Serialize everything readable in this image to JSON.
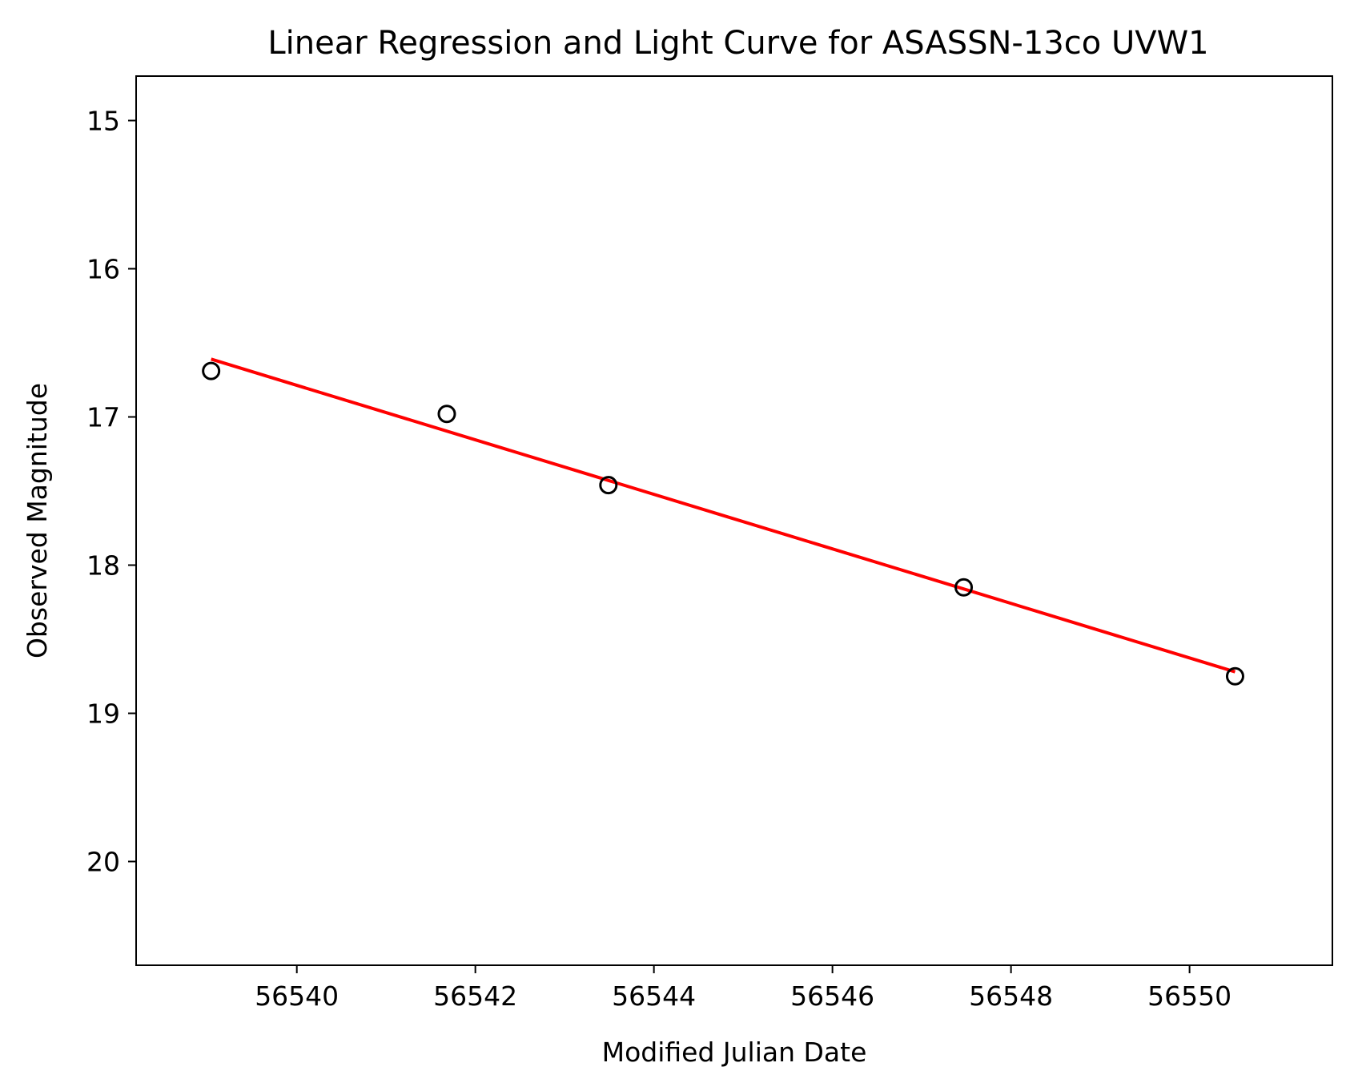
{
  "chart_data": {
    "type": "scatter",
    "title": "Linear Regression and Light Curve for ASASSN-13co UVW1",
    "xlabel": "Modified Julian Date",
    "ylabel": "Observed Magnitude",
    "xlim": [
      56538.2,
      56551.6
    ],
    "ylim": [
      20.7,
      14.7
    ],
    "y_inverted": true,
    "xticks": [
      56540,
      56542,
      56544,
      56546,
      56548,
      56550
    ],
    "yticks": [
      15,
      16,
      17,
      18,
      19,
      20
    ],
    "grid": false,
    "series": [
      {
        "kind": "scatter",
        "marker": "open-circle",
        "color": "#000000",
        "x": [
          56539.04,
          56541.68,
          56543.49,
          56547.47,
          56550.51
        ],
        "y": [
          16.69,
          16.98,
          17.46,
          18.15,
          18.75
        ]
      },
      {
        "kind": "line",
        "color": "#ff0000",
        "x": [
          56539.04,
          56550.51
        ],
        "y": [
          16.61,
          18.72
        ]
      }
    ]
  }
}
